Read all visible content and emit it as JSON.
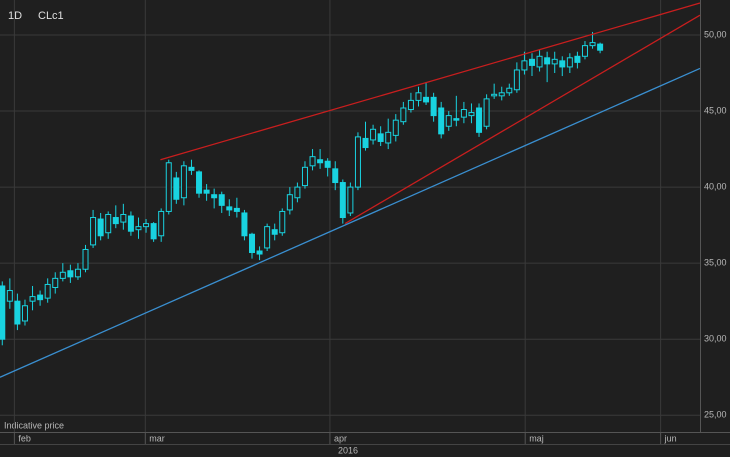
{
  "chart_data": {
    "type": "candlestick",
    "interval": "1D",
    "symbol": "CLc1",
    "note": "Indicative price",
    "year_label": "2016",
    "open": [
      33.5,
      32.5,
      32.5,
      31.2,
      32.5,
      32.9,
      32.7,
      33.4,
      34.0,
      34.5,
      34.1,
      34.6,
      36.2,
      37.9,
      37.0,
      38.0,
      37.7,
      38.1,
      37.2,
      37.4,
      37.6,
      36.8,
      38.4,
      40.6,
      39.3,
      41.3,
      41.0,
      39.8,
      39.5,
      39.5,
      38.7,
      38.6,
      38.3,
      36.9,
      35.8,
      36.0,
      37.2,
      37.0,
      38.5,
      39.3,
      40.1,
      41.4,
      41.8,
      41.7,
      41.2,
      40.3,
      38.3,
      40.0,
      43.2,
      43.1,
      43.5,
      42.9,
      43.4,
      44.3,
      45.1,
      45.7,
      45.9,
      45.9,
      45.2,
      44.0,
      44.5,
      44.6,
      44.7,
      45.2,
      44.0,
      46.0,
      46.0,
      46.2,
      46.4,
      47.7,
      48.4,
      47.9,
      48.5,
      48.1,
      48.3,
      47.9,
      48.6,
      48.6,
      49.3,
      49.4
    ],
    "high": [
      33.8,
      34.0,
      33.0,
      32.6,
      33.5,
      33.2,
      34.0,
      34.4,
      35.0,
      34.9,
      35.0,
      36.2,
      38.5,
      38.3,
      38.4,
      38.8,
      38.9,
      38.4,
      38.0,
      37.9,
      37.7,
      38.6,
      41.8,
      41.0,
      41.7,
      41.8,
      41.1,
      40.2,
      39.9,
      39.7,
      39.2,
      39.3,
      38.5,
      37.0,
      36.1,
      37.6,
      37.6,
      38.6,
      40.0,
      40.3,
      41.7,
      42.5,
      42.5,
      41.9,
      41.7,
      40.5,
      40.3,
      43.6,
      44.3,
      44.1,
      44.0,
      44.5,
      44.8,
      45.6,
      46.2,
      46.6,
      46.9,
      46.2,
      45.6,
      45.0,
      46.0,
      45.6,
      45.5,
      45.5,
      46.1,
      46.8,
      46.6,
      46.8,
      48.2,
      48.9,
      48.8,
      49.0,
      48.9,
      48.9,
      48.6,
      48.8,
      48.9,
      49.6,
      50.2,
      49.5
    ],
    "low": [
      29.6,
      32.0,
      30.6,
      30.9,
      31.9,
      32.2,
      32.4,
      33.0,
      33.8,
      33.7,
      33.9,
      34.4,
      36.0,
      36.5,
      36.6,
      37.3,
      37.2,
      36.8,
      36.6,
      37.0,
      36.4,
      36.4,
      38.2,
      38.9,
      38.8,
      40.8,
      39.3,
      39.1,
      38.6,
      38.3,
      38.1,
      38.0,
      36.5,
      35.3,
      35.2,
      35.8,
      36.5,
      36.8,
      38.2,
      39.0,
      39.9,
      41.1,
      41.2,
      40.7,
      39.8,
      37.6,
      38.1,
      39.8,
      42.4,
      42.8,
      42.7,
      42.5,
      43.0,
      44.1,
      44.9,
      45.3,
      45.4,
      44.3,
      43.2,
      43.7,
      44.0,
      44.2,
      44.2,
      43.3,
      43.8,
      45.8,
      45.7,
      46.0,
      46.2,
      47.4,
      47.3,
      47.6,
      46.9,
      47.5,
      47.3,
      47.5,
      47.8,
      48.4,
      49.1,
      48.8
    ],
    "close": [
      30.0,
      33.2,
      31.0,
      32.2,
      32.8,
      32.6,
      33.6,
      34.0,
      34.4,
      34.1,
      34.6,
      35.9,
      38.0,
      36.8,
      38.2,
      37.6,
      38.2,
      37.1,
      37.4,
      37.6,
      36.6,
      38.4,
      41.6,
      39.2,
      41.4,
      41.1,
      39.6,
      39.6,
      39.3,
      38.8,
      38.5,
      38.4,
      36.8,
      35.7,
      35.6,
      37.4,
      36.9,
      38.4,
      39.5,
      40.0,
      41.3,
      42.0,
      41.6,
      41.3,
      40.3,
      38.0,
      40.0,
      43.3,
      42.6,
      43.8,
      43.0,
      43.6,
      44.4,
      45.2,
      45.7,
      46.2,
      45.6,
      44.7,
      43.5,
      44.7,
      44.4,
      45.1,
      44.9,
      43.6,
      45.8,
      46.1,
      46.2,
      46.5,
      47.7,
      48.3,
      48.0,
      48.6,
      48.1,
      48.4,
      47.9,
      48.5,
      48.2,
      49.3,
      49.5,
      49.0
    ],
    "candle_color": "#19d3e0",
    "xlim": [
      -0.3,
      92.2
    ],
    "xticks": [
      {
        "value": 1.6,
        "label": "feb"
      },
      {
        "value": 18.9,
        "label": "mar"
      },
      {
        "value": 43.3,
        "label": "apr"
      },
      {
        "value": 69.1,
        "label": "maj"
      },
      {
        "value": 87,
        "label": "jun"
      }
    ],
    "ylim": [
      23.9,
      52.3
    ],
    "yticks": [
      {
        "value": 25,
        "label": "25,00"
      },
      {
        "value": 30,
        "label": "30,00"
      },
      {
        "value": 35,
        "label": "35,00"
      },
      {
        "value": 40,
        "label": "40,00"
      },
      {
        "value": 45,
        "label": "45,00"
      },
      {
        "value": 50,
        "label": "50,00"
      }
    ],
    "grid": true,
    "trendlines": [
      {
        "color": "#c81e1e",
        "x": [
          20.9,
          92.2
        ],
        "y": [
          41.8,
          52.1
        ]
      },
      {
        "color": "#c81e1e",
        "x": [
          45.3,
          92.2
        ],
        "y": [
          37.6,
          51.3
        ]
      },
      {
        "color": "#3a8fd0",
        "x": [
          -0.3,
          92.2
        ],
        "y": [
          27.5,
          47.8
        ]
      }
    ]
  }
}
